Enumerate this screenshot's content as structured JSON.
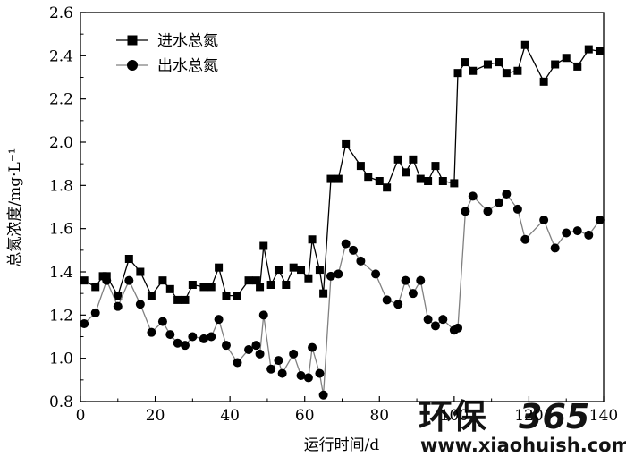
{
  "chart_data": {
    "type": "line",
    "xlabel": "运行时间/d",
    "ylabel": "总氮浓度/mg·L⁻¹",
    "xlim": [
      0,
      140
    ],
    "ylim": [
      0.8,
      2.6
    ],
    "xticks": [
      "0",
      "20",
      "40",
      "60",
      "80",
      "100",
      "120",
      "140"
    ],
    "yticks": [
      "0.8",
      "1.0",
      "1.2",
      "1.4",
      "1.6",
      "1.8",
      "2.0",
      "2.2",
      "2.4",
      "2.6"
    ],
    "legend_position": "top-left",
    "grid": false,
    "series": [
      {
        "name": "进水总氮",
        "marker": "square",
        "color": "#000000",
        "x": [
          1,
          4,
          6,
          7,
          10,
          13,
          16,
          19,
          22,
          24,
          26,
          28,
          30,
          33,
          35,
          37,
          39,
          42,
          45,
          47,
          48,
          49,
          51,
          53,
          55,
          57,
          59,
          61,
          62,
          64,
          65,
          67,
          69,
          71,
          75,
          77,
          80,
          82,
          85,
          87,
          89,
          91,
          93,
          95,
          97,
          100,
          101,
          103,
          105,
          109,
          112,
          114,
          117,
          119,
          124,
          127,
          130,
          133,
          136,
          139
        ],
        "y": [
          1.36,
          1.33,
          1.38,
          1.38,
          1.29,
          1.46,
          1.4,
          1.29,
          1.36,
          1.32,
          1.27,
          1.27,
          1.34,
          1.33,
          1.33,
          1.42,
          1.29,
          1.29,
          1.36,
          1.36,
          1.33,
          1.52,
          1.34,
          1.41,
          1.34,
          1.42,
          1.41,
          1.37,
          1.55,
          1.41,
          1.3,
          1.83,
          1.83,
          1.99,
          1.89,
          1.84,
          1.82,
          1.79,
          1.92,
          1.86,
          1.92,
          1.83,
          1.82,
          1.89,
          1.82,
          1.81,
          2.32,
          2.37,
          2.33,
          2.36,
          2.37,
          2.32,
          2.33,
          2.45,
          2.28,
          2.36,
          2.39,
          2.35,
          2.43,
          2.42
        ]
      },
      {
        "name": "出水总氮",
        "marker": "circle",
        "color": "#808080",
        "x": [
          1,
          4,
          7,
          10,
          13,
          16,
          19,
          22,
          24,
          26,
          28,
          30,
          33,
          35,
          37,
          39,
          42,
          45,
          47,
          48,
          49,
          51,
          53,
          54,
          57,
          59,
          61,
          62,
          64,
          65,
          67,
          69,
          71,
          73,
          75,
          79,
          82,
          85,
          87,
          89,
          91,
          93,
          95,
          97,
          100,
          101,
          103,
          105,
          109,
          112,
          114,
          117,
          119,
          124,
          127,
          130,
          133,
          136,
          139
        ],
        "y": [
          1.16,
          1.21,
          1.36,
          1.24,
          1.36,
          1.25,
          1.12,
          1.17,
          1.11,
          1.07,
          1.06,
          1.1,
          1.09,
          1.1,
          1.18,
          1.06,
          0.98,
          1.04,
          1.06,
          1.02,
          1.2,
          0.95,
          0.99,
          0.93,
          1.02,
          0.92,
          0.91,
          1.05,
          0.93,
          0.83,
          1.38,
          1.39,
          1.53,
          1.5,
          1.45,
          1.39,
          1.27,
          1.25,
          1.36,
          1.3,
          1.36,
          1.18,
          1.15,
          1.18,
          1.13,
          1.14,
          1.68,
          1.75,
          1.68,
          1.72,
          1.76,
          1.69,
          1.55,
          1.64,
          1.51,
          1.58,
          1.59,
          1.57,
          1.64
        ]
      }
    ]
  },
  "watermark": {
    "brand_text": "环保",
    "brand_number": "365",
    "url": "www.xiaohuish.com",
    "color": "#4fb41f"
  }
}
